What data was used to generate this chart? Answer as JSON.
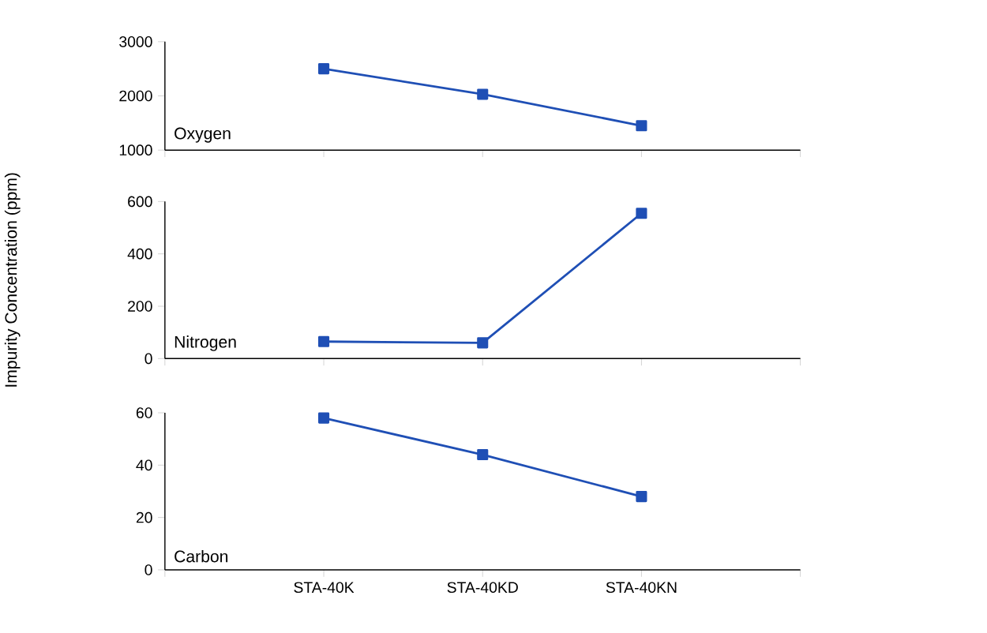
{
  "chart_data": [
    {
      "type": "line",
      "categories": [
        null,
        null,
        null
      ],
      "series": [
        {
          "name": "Oxygen",
          "color": "#1f4fb5",
          "values": [
            2500,
            2030,
            1450
          ]
        }
      ],
      "ylim": [
        1000,
        3000
      ],
      "yticks": [
        1000,
        2000,
        3000
      ],
      "tick_labels": "y",
      "marker": "square",
      "line_style": "solid"
    },
    {
      "type": "line",
      "categories": [
        null,
        null,
        null
      ],
      "ylabel": "Impurity Concentration (ppm)",
      "series": [
        {
          "name": "Nitrogen",
          "color": "#1f4fb5",
          "values": [
            65,
            60,
            555
          ]
        }
      ],
      "ylim": [
        0,
        600
      ],
      "yticks": [
        0,
        200,
        400,
        600
      ],
      "tick_labels": "y",
      "marker": "square",
      "line_style": "solid"
    },
    {
      "type": "line",
      "categories": [
        "STA-40K",
        "STA-40KD",
        "STA-40KN"
      ],
      "series": [
        {
          "name": "Carbon",
          "color": "#1f4fb5",
          "values": [
            58,
            44,
            28
          ]
        }
      ],
      "ylim": [
        0,
        60
      ],
      "yticks": [
        0,
        20,
        40,
        60
      ],
      "marker": "square",
      "line_style": "solid"
    }
  ]
}
